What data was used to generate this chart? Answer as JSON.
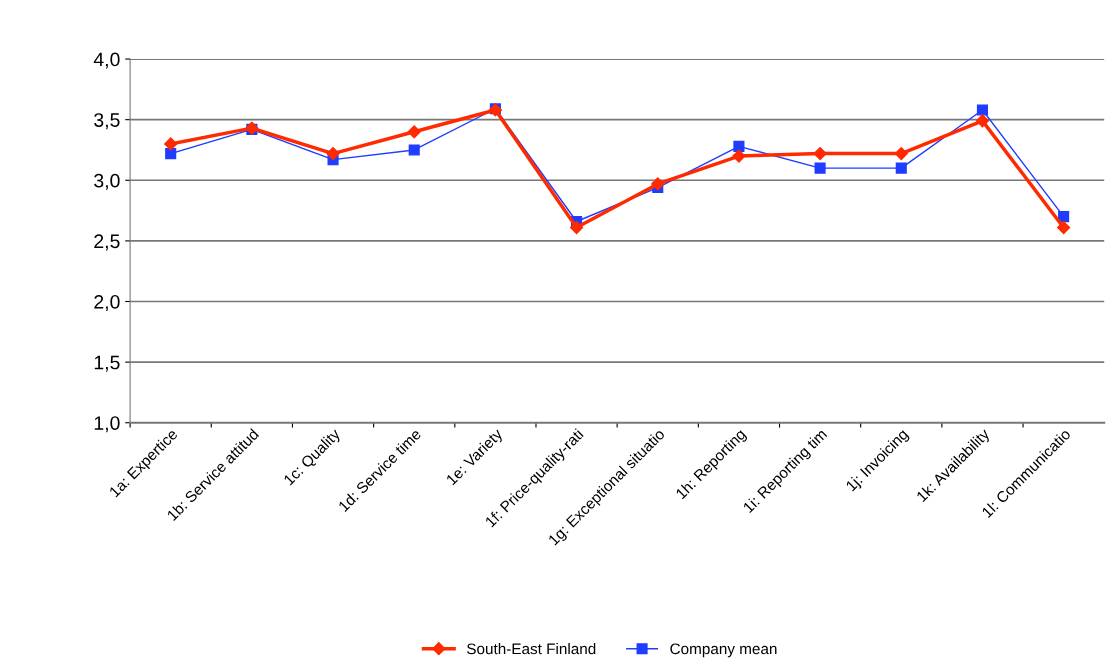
{
  "chart_data": {
    "type": "line",
    "categories": [
      "1a: Expertice",
      "1b: Service attitud",
      "1c: Quality",
      "1d: Service time",
      "1e: Variety",
      "1f: Price-quality-rati",
      "1g: Exceptional situatio",
      "1h: Reporting",
      "1i: Reporting tim",
      "1j: Invoicing",
      "1k: Availability",
      "1l: Communicatio"
    ],
    "series": [
      {
        "name": "South-East Finland",
        "color": "#ff2a00",
        "marker": "diamond",
        "values": [
          3.3,
          3.43,
          3.22,
          3.4,
          3.58,
          2.61,
          2.97,
          3.2,
          3.22,
          3.22,
          3.49,
          2.61
        ]
      },
      {
        "name": "Company mean",
        "color": "#1f3dff",
        "marker": "square",
        "values": [
          3.22,
          3.42,
          3.17,
          3.25,
          3.59,
          2.66,
          2.94,
          3.28,
          3.1,
          3.1,
          3.58,
          2.7
        ]
      }
    ],
    "ylim": [
      1.0,
      4.0
    ],
    "yticks": [
      {
        "value": 1.0,
        "label": "1,0"
      },
      {
        "value": 1.5,
        "label": "1,5"
      },
      {
        "value": 2.0,
        "label": "2,0"
      },
      {
        "value": 2.5,
        "label": "2,5"
      },
      {
        "value": 3.0,
        "label": "3,0"
      },
      {
        "value": 3.5,
        "label": "3,5"
      },
      {
        "value": 4.0,
        "label": "4,0"
      }
    ],
    "grid": "y",
    "legend": "bottom"
  }
}
